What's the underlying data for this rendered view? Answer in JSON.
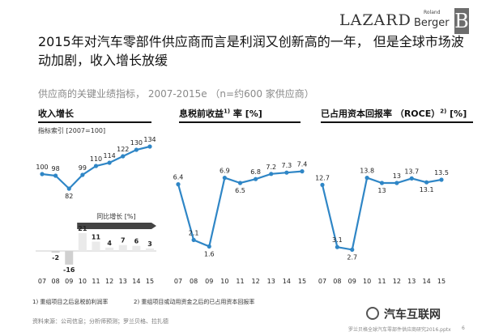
{
  "brand": {
    "lazard": "LAZARD",
    "rb_small": "Roland",
    "rb_big": "Berger",
    "rb_mark": "B"
  },
  "title": "2015年对汽车零部件供应商而言是利润又创新高的一年， 但是全球市场波动加剧，收入增长放缓",
  "subtitle": "供应商的关键业绩指标， 2007-2015e （n=约600 家供应商）",
  "index_note": "指标索引 [2007=100]",
  "footnotes": [
    "1)  重组项目之后息税前利润率",
    "2)  重组项目或动用资金之后的已占用资本回报率"
  ],
  "source_note": "资料来源：公司信息；分析师预测；罗兰贝格、拉扎德",
  "watermark": "汽车互联网",
  "footer": "罗兰贝格全球汽车零部件供应商研究2016.pptx",
  "page_number": "6",
  "colors": {
    "line": "#2f86c6",
    "bar_negative": "#d0d0d0",
    "bar_positive": "#eaeaea",
    "bar_accent": "#444444"
  },
  "chart_data": [
    {
      "type": "line",
      "title": "收入增长",
      "categories": [
        "07",
        "08",
        "09",
        "10",
        "11",
        "12",
        "13",
        "14",
        "15"
      ],
      "values": [
        100,
        98,
        82,
        99,
        110,
        114,
        122,
        130,
        134
      ],
      "ylim": [
        70,
        150
      ],
      "inset": {
        "type": "bar",
        "label": "同比增长 [%]",
        "categories": [
          "07",
          "08",
          "09",
          "10",
          "11",
          "12",
          "13",
          "14",
          "15"
        ],
        "values": [
          null,
          -2,
          -16,
          21,
          11,
          4,
          7,
          6,
          3
        ]
      }
    },
    {
      "type": "line",
      "title": "息税前收益",
      "title_sup": "1)",
      "title_suffix": " 率 [%]",
      "categories": [
        "07",
        "08",
        "09",
        "10",
        "11",
        "12",
        "13",
        "14",
        "15"
      ],
      "values": [
        6.4,
        2.1,
        1.6,
        6.9,
        6.5,
        6.8,
        7.2,
        7.3,
        7.4
      ],
      "ylim": [
        0,
        10
      ]
    },
    {
      "type": "line",
      "title": "已占用资本回报率 （ROCE）",
      "title_sup": "2)",
      "title_suffix": " [%]",
      "categories": [
        "07",
        "08",
        "09",
        "10",
        "11",
        "12",
        "13",
        "14",
        "15"
      ],
      "values": [
        12.7,
        3.1,
        2.7,
        13.8,
        13.0,
        13.0,
        13.7,
        13.1,
        13.5
      ],
      "ylim": [
        0,
        20
      ]
    }
  ]
}
